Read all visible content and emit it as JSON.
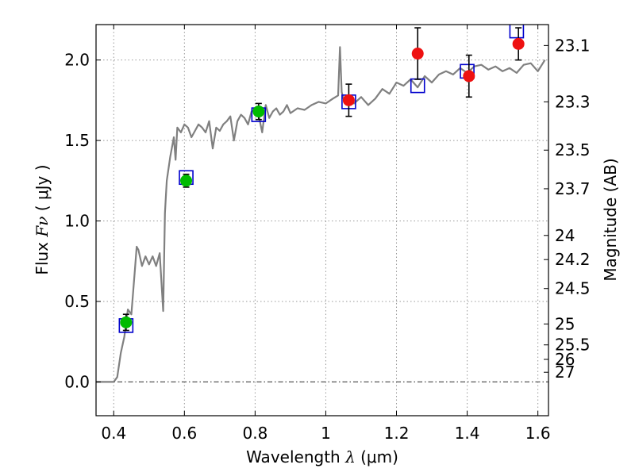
{
  "chart_data": {
    "type": "scatter",
    "xlabel": {
      "prefix": "Wavelength  ",
      "symbol": "λ",
      "suffix": " (μm)"
    },
    "ylabel": {
      "prefix": "Flux  ",
      "symbol": "Fν",
      "suffix": "  ( μJy )"
    },
    "y2label": "Magnitude (AB)",
    "xlim": [
      0.35,
      1.63
    ],
    "ylim": [
      -0.21,
      2.22
    ],
    "grid": true,
    "x_ticks": [
      {
        "value": 0.4,
        "label": "0.4"
      },
      {
        "value": 0.6,
        "label": "0.6"
      },
      {
        "value": 0.8,
        "label": "0.8"
      },
      {
        "value": 1.0,
        "label": "1"
      },
      {
        "value": 1.2,
        "label": "1.2"
      },
      {
        "value": 1.4,
        "label": "1.4"
      },
      {
        "value": 1.6,
        "label": "1.6"
      }
    ],
    "y_ticks": [
      {
        "value": 0.0,
        "label": "0.0"
      },
      {
        "value": 0.5,
        "label": "0.5"
      },
      {
        "value": 1.0,
        "label": "1.0"
      },
      {
        "value": 1.5,
        "label": "1.5"
      },
      {
        "value": 2.0,
        "label": "2.0"
      }
    ],
    "magnitude_ticks": [
      {
        "flux": 2.09,
        "label": "23.1"
      },
      {
        "flux": 1.74,
        "label": "23.3"
      },
      {
        "flux": 1.44,
        "label": "23.5"
      },
      {
        "flux": 1.2,
        "label": "23.7"
      },
      {
        "flux": 0.91,
        "label": "24"
      },
      {
        "flux": 0.76,
        "label": "24.2"
      },
      {
        "flux": 0.58,
        "label": "24.5"
      },
      {
        "flux": 0.36,
        "label": "25"
      },
      {
        "flux": 0.23,
        "label": "25.5"
      },
      {
        "flux": 0.14,
        "label": "26"
      },
      {
        "flux": 0.06,
        "label": "27"
      }
    ],
    "colors": {
      "spectrum": "#808080",
      "model_box": "#0000cc",
      "optical_points": "#00bb00",
      "nir_points": "#ee1111",
      "error_bars": "#000000",
      "grid": "#999999"
    },
    "series": [
      {
        "kind": "spectrum",
        "x": [
          0.35,
          0.4,
          0.41,
          0.42,
          0.43,
          0.44,
          0.45,
          0.46,
          0.465,
          0.47,
          0.48,
          0.49,
          0.5,
          0.51,
          0.52,
          0.53,
          0.535,
          0.54,
          0.545,
          0.55,
          0.56,
          0.57,
          0.575,
          0.58,
          0.59,
          0.6,
          0.61,
          0.62,
          0.63,
          0.64,
          0.65,
          0.66,
          0.67,
          0.68,
          0.69,
          0.7,
          0.71,
          0.72,
          0.73,
          0.74,
          0.75,
          0.76,
          0.77,
          0.78,
          0.79,
          0.8,
          0.81,
          0.82,
          0.83,
          0.84,
          0.85,
          0.86,
          0.87,
          0.88,
          0.89,
          0.9,
          0.92,
          0.94,
          0.96,
          0.98,
          1.0,
          1.02,
          1.035,
          1.04,
          1.045,
          1.05,
          1.06,
          1.08,
          1.1,
          1.12,
          1.14,
          1.16,
          1.18,
          1.2,
          1.22,
          1.24,
          1.26,
          1.28,
          1.3,
          1.32,
          1.34,
          1.36,
          1.38,
          1.4,
          1.42,
          1.44,
          1.46,
          1.48,
          1.5,
          1.52,
          1.54,
          1.56,
          1.58,
          1.6,
          1.62
        ],
        "y": [
          0.0,
          0.0,
          0.03,
          0.18,
          0.28,
          0.45,
          0.42,
          0.7,
          0.84,
          0.82,
          0.72,
          0.78,
          0.73,
          0.78,
          0.72,
          0.8,
          0.62,
          0.44,
          1.05,
          1.25,
          1.4,
          1.52,
          1.38,
          1.58,
          1.55,
          1.6,
          1.58,
          1.52,
          1.56,
          1.6,
          1.58,
          1.55,
          1.62,
          1.45,
          1.58,
          1.56,
          1.6,
          1.62,
          1.65,
          1.5,
          1.62,
          1.66,
          1.64,
          1.6,
          1.68,
          1.7,
          1.66,
          1.55,
          1.72,
          1.64,
          1.68,
          1.7,
          1.66,
          1.68,
          1.72,
          1.67,
          1.7,
          1.69,
          1.72,
          1.74,
          1.73,
          1.76,
          1.78,
          2.08,
          1.8,
          1.76,
          1.74,
          1.73,
          1.77,
          1.72,
          1.76,
          1.82,
          1.79,
          1.86,
          1.84,
          1.88,
          1.83,
          1.9,
          1.86,
          1.91,
          1.93,
          1.91,
          1.95,
          1.92,
          1.96,
          1.97,
          1.94,
          1.96,
          1.93,
          1.95,
          1.92,
          1.97,
          1.98,
          1.93,
          2.0
        ]
      },
      {
        "kind": "model_box",
        "x": [
          0.435,
          0.605,
          0.81,
          1.065,
          1.26,
          1.4,
          1.54
        ],
        "y": [
          0.35,
          1.27,
          1.66,
          1.74,
          1.84,
          1.93,
          2.18
        ]
      },
      {
        "kind": "optical_points",
        "x": [
          0.435,
          0.605,
          0.81
        ],
        "y": [
          0.37,
          1.25,
          1.68
        ],
        "err": [
          0.05,
          0.04,
          0.05
        ]
      },
      {
        "kind": "nir_points",
        "x": [
          1.065,
          1.26,
          1.405,
          1.545
        ],
        "y": [
          1.75,
          2.04,
          1.9,
          2.1
        ],
        "err": [
          0.1,
          0.16,
          0.13,
          0.1
        ]
      }
    ]
  }
}
